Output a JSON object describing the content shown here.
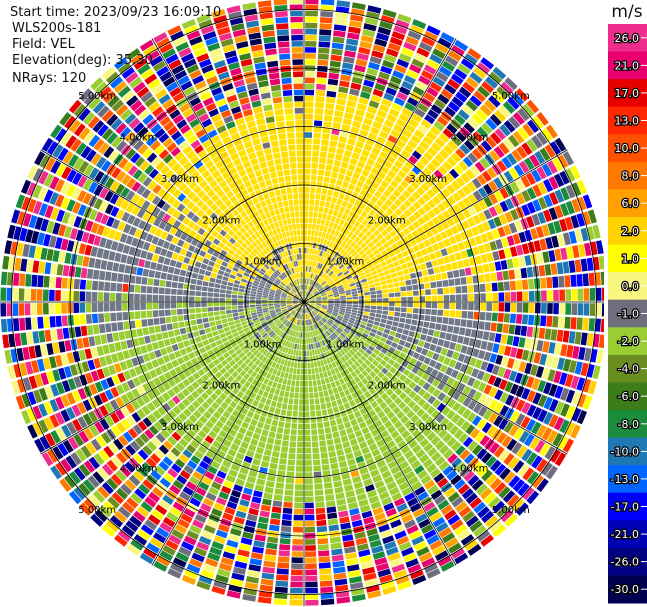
{
  "header": {
    "start_time": "Start time: 2023/09/23 16:09:10",
    "instrument": "WLS200s-181",
    "field": "Field: VEL",
    "elevation": "Elevation(deg): 35.30",
    "nrays": "NRays: 120"
  },
  "chart_data": {
    "type": "heatmap",
    "projection": "polar PPI",
    "field": "VEL",
    "n_rays": 120,
    "range_rings_km": [
      1.0,
      2.0,
      3.0,
      4.0,
      5.0
    ],
    "ring_labels": [
      "1.00km",
      "2.00km",
      "3.00km",
      "4.00km",
      "5.00km"
    ],
    "max_range_km": 5.2,
    "spokes_deg": [
      0,
      30,
      60,
      90,
      120,
      150,
      180,
      210,
      240,
      270,
      300,
      330
    ],
    "colorbar": {
      "unit": "m/s",
      "tick_labels": [
        "26.0",
        "21.0",
        "17.0",
        "13.0",
        "10.0",
        "8.0",
        "6.0",
        "2.0",
        "1.0",
        "0.0",
        "-1.0",
        "-2.0",
        "-4.0",
        "-6.0",
        "-8.0",
        "-10.0",
        "-13.0",
        "-17.0",
        "-21.0",
        "-26.0",
        "-30.0"
      ],
      "colors": [
        "#f02d8c",
        "#e8006e",
        "#e60000",
        "#ff2800",
        "#ff5000",
        "#ff7800",
        "#ffa000",
        "#ffd200",
        "#ffff00",
        "#f8f880",
        "#6e6e7e",
        "#9acd32",
        "#6b8e23",
        "#3c7d1a",
        "#1a8c3c",
        "#1f78b4",
        "#0066ff",
        "#0000ff",
        "#0000b4",
        "#000080",
        "#000050"
      ]
    },
    "colors": {
      "near_positive": "#ffe000",
      "near_zero": "#707888",
      "near_negative": "#9acd32"
    }
  }
}
